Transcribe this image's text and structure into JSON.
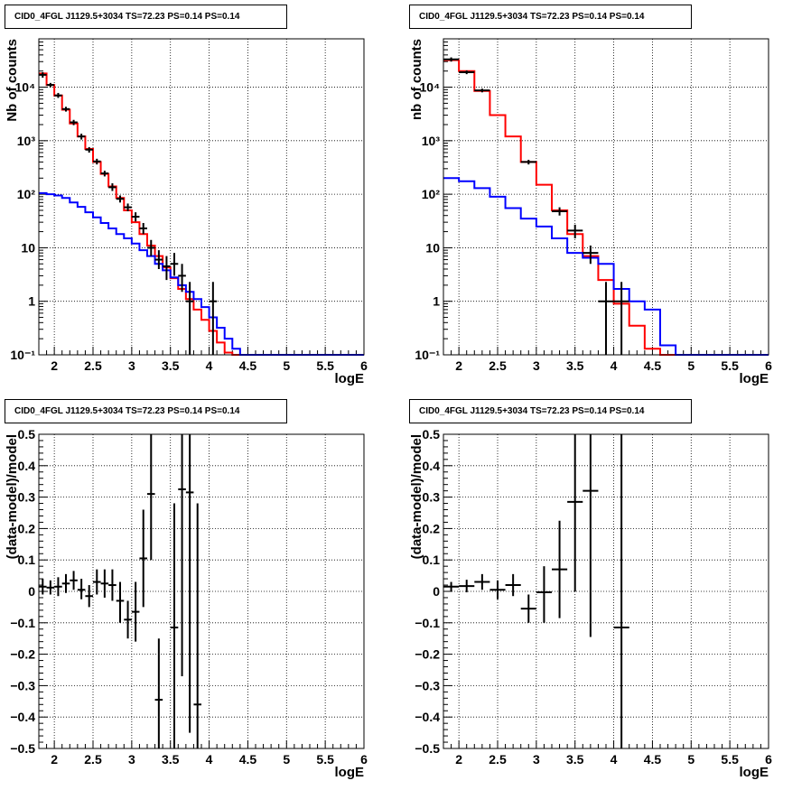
{
  "chart_data": [
    {
      "id": "p1",
      "type": "histogram",
      "yscale": "log",
      "title": "CID0_4FGL J1129.5+3034 TS=72.23 PS=0.14 PS=0.14",
      "xlabel": "logE",
      "ylabel": "Nb of counts",
      "xlim": [
        1.8,
        6
      ],
      "ylim": [
        0.1,
        80000
      ],
      "grid": true,
      "xticks": [
        2,
        2.5,
        3,
        3.5,
        4,
        4.5,
        5,
        5.5,
        6
      ],
      "xticklabels": [
        "2",
        "2.5",
        "3",
        "3.5",
        "4",
        "4.5",
        "5",
        "5.5",
        "6"
      ],
      "yticks": [
        0.1,
        1,
        10,
        100,
        1000,
        10000
      ],
      "yticklabels": [
        "10⁻¹",
        "1",
        "10",
        "10²",
        "10³",
        "10⁴"
      ],
      "bin_start": 1.8,
      "bin_width": 0.1,
      "series": [
        {
          "color": "#ff0000",
          "values": [
            18000,
            11000,
            7000,
            3800,
            2100,
            1200,
            700,
            400,
            240,
            140,
            85,
            50,
            30,
            18,
            11,
            7,
            4.3,
            2.7,
            1.7,
            1.1,
            0.7,
            0.45,
            0.28,
            0.17,
            0.11,
            0.1,
            0.1,
            0.1,
            0.1,
            0.1,
            0.1,
            0.1,
            0.1,
            0.1,
            0.1,
            0.1,
            0.1,
            0.1,
            0.1,
            0.1,
            0.1,
            0.1
          ]
        },
        {
          "color": "#0000ff",
          "values": [
            105,
            100,
            95,
            85,
            70,
            58,
            46,
            37,
            29,
            23,
            18,
            15,
            12,
            9,
            7,
            5,
            3.8,
            2.8,
            2,
            1.5,
            1.1,
            0.78,
            0.5,
            0.32,
            0.2,
            0.13,
            0.1,
            0.1,
            0.1,
            0.1,
            0.1,
            0.1,
            0.1,
            0.1,
            0.1,
            0.1,
            0.1,
            0.1,
            0.1,
            0.1,
            0.1,
            0.1
          ]
        }
      ],
      "points": [
        {
          "x": 1.85,
          "y": 17000,
          "lo": 15000,
          "hi": 19000
        },
        {
          "x": 1.95,
          "y": 11000,
          "lo": 10000,
          "hi": 12000
        },
        {
          "x": 2.05,
          "y": 7000,
          "lo": 6300,
          "hi": 7800
        },
        {
          "x": 2.15,
          "y": 3900,
          "lo": 3500,
          "hi": 4300
        },
        {
          "x": 2.25,
          "y": 2200,
          "lo": 1950,
          "hi": 2450
        },
        {
          "x": 2.35,
          "y": 1200,
          "lo": 1050,
          "hi": 1350
        },
        {
          "x": 2.45,
          "y": 680,
          "lo": 600,
          "hi": 760
        },
        {
          "x": 2.55,
          "y": 410,
          "lo": 360,
          "hi": 460
        },
        {
          "x": 2.65,
          "y": 245,
          "lo": 215,
          "hi": 275
        },
        {
          "x": 2.75,
          "y": 135,
          "lo": 115,
          "hi": 160
        },
        {
          "x": 2.85,
          "y": 82,
          "lo": 70,
          "hi": 95
        },
        {
          "x": 2.95,
          "y": 57,
          "lo": 48,
          "hi": 67
        },
        {
          "x": 3.05,
          "y": 38,
          "lo": 31,
          "hi": 46
        },
        {
          "x": 3.15,
          "y": 23,
          "lo": 18,
          "hi": 29
        },
        {
          "x": 3.25,
          "y": 10,
          "lo": 7,
          "hi": 14
        },
        {
          "x": 3.35,
          "y": 6,
          "lo": 4,
          "hi": 9
        },
        {
          "x": 3.45,
          "y": 4.5,
          "lo": 2.5,
          "hi": 7
        },
        {
          "x": 3.55,
          "y": 5,
          "lo": 3,
          "hi": 8
        },
        {
          "x": 3.65,
          "y": 3,
          "lo": 1.5,
          "hi": 5
        },
        {
          "x": 3.75,
          "y": 1,
          "lo": 0.1,
          "hi": 2.3
        },
        {
          "x": 4.05,
          "y": 1,
          "lo": 0.1,
          "hi": 2.3
        }
      ]
    },
    {
      "id": "p2",
      "type": "histogram",
      "yscale": "log",
      "title": "CID0_4FGL J1129.5+3034 TS=72.23 PS=0.14 PS=0.14",
      "xlabel": "logE",
      "ylabel": "nb of counts",
      "xlim": [
        1.8,
        6
      ],
      "ylim": [
        0.1,
        80000
      ],
      "grid": true,
      "xticks": [
        2,
        2.5,
        3,
        3.5,
        4,
        4.5,
        5,
        5.5,
        6
      ],
      "xticklabels": [
        "2",
        "2.5",
        "3",
        "3.5",
        "4",
        "4.5",
        "5",
        "5.5",
        "6"
      ],
      "yticks": [
        0.1,
        1,
        10,
        100,
        1000,
        10000
      ],
      "yticklabels": [
        "10⁻¹",
        "1",
        "10",
        "10²",
        "10³",
        "10⁴"
      ],
      "bin_start": 1.8,
      "bin_width": 0.2,
      "series": [
        {
          "color": "#ff0000",
          "values": [
            32000,
            20000,
            8500,
            3000,
            1200,
            400,
            150,
            50,
            18,
            7,
            2.5,
            0.9,
            0.35,
            0.13,
            0.1,
            0.1,
            0.1,
            0.1,
            0.1,
            0.1,
            0.1
          ]
        },
        {
          "color": "#0000ff",
          "values": [
            200,
            175,
            130,
            90,
            55,
            35,
            25,
            15,
            8,
            6.5,
            5,
            1.7,
            1,
            0.7,
            0.15,
            0.1,
            0.1,
            0.1,
            0.1,
            0.1,
            0.1
          ]
        }
      ],
      "points": [
        {
          "x": 1.9,
          "y": 33000,
          "lo": 30000,
          "hi": 36000
        },
        {
          "x": 2.1,
          "y": 19000,
          "lo": 17500,
          "hi": 20500
        },
        {
          "x": 2.3,
          "y": 8700,
          "lo": 8000,
          "hi": 9400
        },
        {
          "x": 2.9,
          "y": 400,
          "lo": 360,
          "hi": 440
        },
        {
          "x": 3.3,
          "y": 48,
          "lo": 40,
          "hi": 57
        },
        {
          "x": 3.5,
          "y": 21,
          "lo": 15,
          "hi": 27
        },
        {
          "x": 3.7,
          "y": 8,
          "lo": 5,
          "hi": 11
        },
        {
          "x": 3.9,
          "y": 1,
          "lo": 0.1,
          "hi": 2.3
        },
        {
          "x": 4.1,
          "y": 1,
          "lo": 0.1,
          "hi": 2.3
        }
      ]
    },
    {
      "id": "p3",
      "type": "scatter",
      "yscale": "linear",
      "title": "CID0_4FGL J1129.5+3034 TS=72.23 PS=0.14 PS=0.14",
      "xlabel": "logE",
      "ylabel": "(data-model)/model",
      "xlim": [
        1.8,
        6
      ],
      "ylim": [
        -0.5,
        0.5
      ],
      "grid": true,
      "xticks": [
        2,
        2.5,
        3,
        3.5,
        4,
        4.5,
        5,
        5.5,
        6
      ],
      "xticklabels": [
        "2",
        "2.5",
        "3",
        "3.5",
        "4",
        "4.5",
        "5",
        "5.5",
        "6"
      ],
      "yticks": [
        -0.5,
        -0.4,
        -0.3,
        -0.2,
        -0.1,
        0,
        0.1,
        0.2,
        0.3,
        0.4,
        0.5
      ],
      "yticklabels": [
        "−0.5",
        "−0.4",
        "−0.3",
        "−0.2",
        "−0.1",
        "0",
        "0.1",
        "0.2",
        "0.3",
        "0.4",
        "0.5"
      ],
      "xerr": 0.05,
      "points": [
        {
          "x": 1.85,
          "y": 0.015,
          "lo": -0.01,
          "hi": 0.04
        },
        {
          "x": 1.95,
          "y": 0.012,
          "lo": -0.01,
          "hi": 0.035
        },
        {
          "x": 2.05,
          "y": 0.015,
          "lo": -0.015,
          "hi": 0.045
        },
        {
          "x": 2.15,
          "y": 0.025,
          "lo": -0.005,
          "hi": 0.055
        },
        {
          "x": 2.25,
          "y": 0.035,
          "lo": 0.005,
          "hi": 0.065
        },
        {
          "x": 2.35,
          "y": 0.005,
          "lo": -0.025,
          "hi": 0.04
        },
        {
          "x": 2.45,
          "y": -0.015,
          "lo": -0.05,
          "hi": 0.02
        },
        {
          "x": 2.55,
          "y": 0.03,
          "lo": -0.01,
          "hi": 0.07
        },
        {
          "x": 2.65,
          "y": 0.025,
          "lo": -0.02,
          "hi": 0.07
        },
        {
          "x": 2.75,
          "y": 0.02,
          "lo": -0.03,
          "hi": 0.07
        },
        {
          "x": 2.85,
          "y": -0.03,
          "lo": -0.1,
          "hi": 0.03
        },
        {
          "x": 2.95,
          "y": -0.09,
          "lo": -0.15,
          "hi": -0.03
        },
        {
          "x": 3.05,
          "y": -0.065,
          "lo": -0.16,
          "hi": 0.03
        },
        {
          "x": 3.15,
          "y": 0.105,
          "lo": -0.05,
          "hi": 0.26
        },
        {
          "x": 3.25,
          "y": 0.31,
          "lo": 0.1,
          "hi": 0.5
        },
        {
          "x": 3.35,
          "y": -0.345,
          "lo": -0.5,
          "hi": -0.15
        },
        {
          "x": 3.55,
          "y": -0.115,
          "lo": -0.5,
          "hi": 0.28
        },
        {
          "x": 3.65,
          "y": 0.325,
          "lo": -0.27,
          "hi": 0.5
        },
        {
          "x": 3.75,
          "y": 0.315,
          "lo": -0.45,
          "hi": 0.5
        },
        {
          "x": 3.85,
          "y": -0.36,
          "lo": -0.5,
          "hi": 0.28
        }
      ]
    },
    {
      "id": "p4",
      "type": "scatter",
      "yscale": "linear",
      "title": "CID0_4FGL J1129.5+3034 TS=72.23 PS=0.14 PS=0.14",
      "xlabel": "logE",
      "ylabel": "(data-model)/model",
      "xlim": [
        1.8,
        6
      ],
      "ylim": [
        -0.5,
        0.5
      ],
      "grid": true,
      "xticks": [
        2,
        2.5,
        3,
        3.5,
        4,
        4.5,
        5,
        5.5,
        6
      ],
      "xticklabels": [
        "2",
        "2.5",
        "3",
        "3.5",
        "4",
        "4.5",
        "5",
        "5.5",
        "6"
      ],
      "yticks": [
        -0.5,
        -0.4,
        -0.3,
        -0.2,
        -0.1,
        0,
        0.1,
        0.2,
        0.3,
        0.4,
        0.5
      ],
      "yticklabels": [
        "−0.5",
        "−0.4",
        "−0.3",
        "−0.2",
        "−0.1",
        "0",
        "0.1",
        "0.2",
        "0.3",
        "0.4",
        "0.5"
      ],
      "xerr": 0.1,
      "points": [
        {
          "x": 1.9,
          "y": 0.015,
          "lo": 0,
          "hi": 0.03
        },
        {
          "x": 2.1,
          "y": 0.017,
          "lo": -0.003,
          "hi": 0.037
        },
        {
          "x": 2.3,
          "y": 0.03,
          "lo": 0.005,
          "hi": 0.055
        },
        {
          "x": 2.5,
          "y": 0.005,
          "lo": -0.025,
          "hi": 0.035
        },
        {
          "x": 2.7,
          "y": 0.02,
          "lo": -0.015,
          "hi": 0.055
        },
        {
          "x": 2.9,
          "y": -0.055,
          "lo": -0.1,
          "hi": -0.01
        },
        {
          "x": 3.1,
          "y": -0.003,
          "lo": -0.1,
          "hi": 0.08
        },
        {
          "x": 3.3,
          "y": 0.07,
          "lo": -0.085,
          "hi": 0.225
        },
        {
          "x": 3.5,
          "y": 0.285,
          "lo": 0,
          "hi": 0.5
        },
        {
          "x": 3.7,
          "y": 0.32,
          "lo": -0.145,
          "hi": 0.5
        },
        {
          "x": 4.1,
          "y": -0.115,
          "lo": -0.5,
          "hi": 0.5
        }
      ]
    }
  ]
}
